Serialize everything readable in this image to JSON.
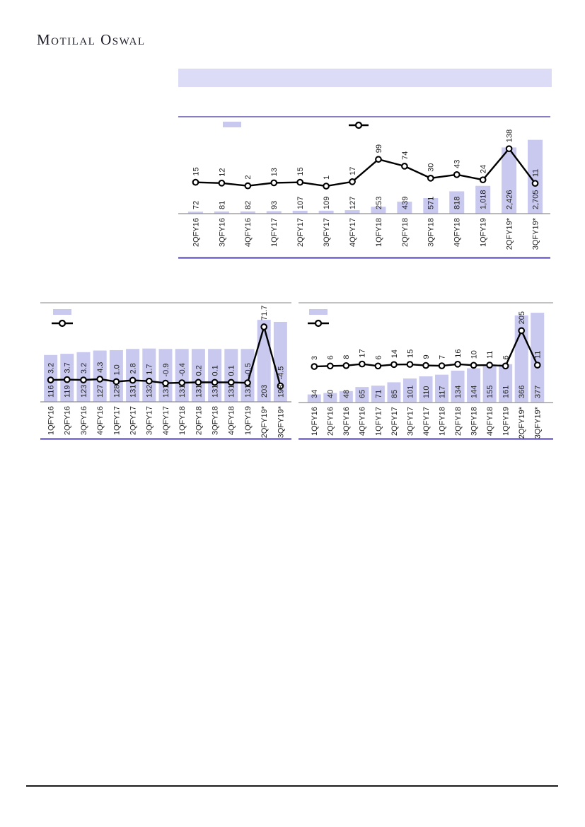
{
  "page": {
    "logo_text": "Motilal Oswal"
  },
  "colors": {
    "bar_fill": "#c9c9ef",
    "band_fill": "#dcdcf6",
    "purple_rule": "#5f52b0",
    "gray_rule": "#adadad",
    "axis_line": "#8f8f8f",
    "line_series": "#000000",
    "marker_fill": "#ffffff",
    "label_text": "#1f1f1f",
    "footer_rule": "#1a1a1a"
  },
  "chart_data": [
    {
      "name": "top-quarterly-combo-chart",
      "type": "bar",
      "subtype": "bar+line",
      "title": "",
      "xlabel": "",
      "ylabel": "",
      "gridlines": false,
      "legend": {
        "position": "top",
        "bar_label": "",
        "line_label": ""
      },
      "categories": [
        "2QFY16",
        "3QFY16",
        "4QFY16",
        "1QFY17",
        "2QFY17",
        "3QFY17",
        "4QFY17",
        "1QFY18",
        "2QFY18",
        "3QFY18",
        "4QFY18",
        "1QFY19",
        "2QFY19*",
        "3QFY19*"
      ],
      "series": [
        {
          "name": "bars",
          "type": "bar",
          "values": [
            72,
            81,
            82,
            93,
            107,
            109,
            127,
            253,
            439,
            571,
            818,
            1018,
            2426,
            2705
          ],
          "labels": [
            "72",
            "81",
            "82",
            "93",
            "107",
            "109",
            "127",
            "253",
            "439",
            "571",
            "818",
            "1,018",
            "2,426",
            "2,705"
          ],
          "ylim": [
            0,
            3500
          ]
        },
        {
          "name": "line",
          "type": "line",
          "values": [
            15,
            12,
            2,
            13,
            15,
            1,
            17,
            99,
            74,
            30,
            43,
            24,
            138,
            11
          ],
          "labels": [
            "15",
            "12",
            "2",
            "13",
            "15",
            "1",
            "17",
            "99",
            "74",
            "30",
            "43",
            "24",
            "138",
            "11"
          ],
          "ylim": [
            -100,
            250
          ]
        }
      ]
    },
    {
      "name": "bottom-left-combo-chart",
      "type": "bar",
      "subtype": "bar+line",
      "title": "",
      "xlabel": "",
      "ylabel": "",
      "gridlines": false,
      "legend": {
        "position": "top-left",
        "bar_label": "",
        "line_label": ""
      },
      "categories": [
        "1QFY16",
        "2QFY16",
        "3QFY16",
        "4QFY16",
        "1QFY17",
        "2QFY17",
        "3QFY17",
        "4QFY17",
        "1QFY18",
        "2QFY18",
        "3QFY18",
        "4QFY18",
        "1QFY19",
        "2QFY19*",
        "3QFY19*"
      ],
      "series": [
        {
          "name": "bars",
          "type": "bar",
          "values": [
            116,
            119,
            123,
            127,
            128,
            131,
            132,
            131,
            131,
            131,
            131,
            131,
            131,
            203,
            198
          ],
          "labels": [
            "116",
            "119",
            "123",
            "127",
            "128",
            "131",
            "132",
            "131",
            "131",
            "131",
            "131",
            "131",
            "131",
            "203",
            "198"
          ],
          "ylim": [
            0,
            240
          ]
        },
        {
          "name": "line",
          "type": "line",
          "values": [
            3.2,
            3.7,
            3.2,
            4.3,
            1.0,
            2.8,
            1.7,
            -0.9,
            -0.4,
            0.2,
            0.1,
            0.1,
            -0.5,
            71.7,
            -4.5
          ],
          "labels": [
            "3.2",
            "3.7",
            "3.2",
            "4.3",
            "1.0",
            "2.8",
            "1.7",
            "-0.9",
            "-0.4",
            "0.2",
            "0.1",
            "0.1",
            "-0.5",
            "71.7",
            "-4.5"
          ],
          "ylim": [
            -25,
            100
          ]
        }
      ]
    },
    {
      "name": "bottom-right-combo-chart",
      "type": "bar",
      "subtype": "bar+line",
      "title": "",
      "xlabel": "",
      "ylabel": "",
      "gridlines": false,
      "legend": {
        "position": "top-left",
        "bar_label": "",
        "line_label": ""
      },
      "categories": [
        "1QFY16",
        "2QFY16",
        "3QFY16",
        "4QFY16",
        "1QFY17",
        "2QFY17",
        "3QFY17",
        "4QFY17",
        "1QFY18",
        "2QFY18",
        "3QFY18",
        "4QFY18",
        "1QFY19",
        "2QFY19*",
        "3QFY19*"
      ],
      "series": [
        {
          "name": "bars",
          "type": "bar",
          "values": [
            34,
            40,
            48,
            65,
            71,
            85,
            101,
            110,
            117,
            134,
            144,
            155,
            161,
            366,
            377
          ],
          "labels": [
            "34",
            "40",
            "48",
            "65",
            "71",
            "85",
            "101",
            "110",
            "117",
            "134",
            "144",
            "155",
            "161",
            "366",
            "377"
          ],
          "ylim": [
            0,
            410
          ]
        },
        {
          "name": "line",
          "type": "line",
          "values": [
            3,
            6,
            8,
            17,
            6,
            14,
            15,
            9,
            7,
            16,
            10,
            11,
            6,
            205,
            11
          ],
          "labels": [
            "3",
            "6",
            "8",
            "17",
            "6",
            "14",
            "15",
            "9",
            "7",
            "16",
            "10",
            "11",
            "6",
            "205",
            "11"
          ],
          "ylim": [
            -200,
            350
          ]
        }
      ]
    }
  ]
}
